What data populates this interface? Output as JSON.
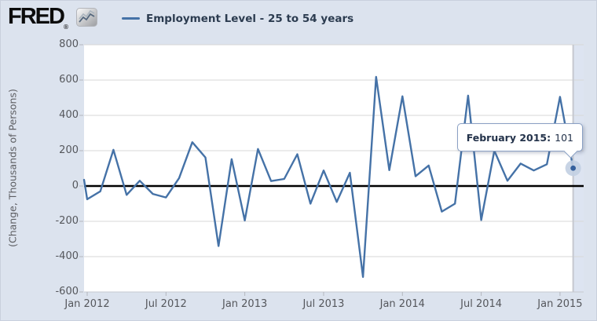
{
  "header": {
    "logo_text": "FRED",
    "logo_registered": "®"
  },
  "legend": {
    "series_label": "Employment Level - 25 to 54 years",
    "swatch_color": "#4572a7"
  },
  "y_axis": {
    "title": "(Change, Thousands of Persons)",
    "tick_labels": [
      "800",
      "600",
      "400",
      "200",
      "0",
      "-200",
      "-400",
      "-600"
    ]
  },
  "x_axis": {
    "tick_labels": [
      "Jan 2012",
      "Jul 2012",
      "Jan 2013",
      "Jul 2013",
      "Jan 2014",
      "Jul 2014",
      "Jan 2015"
    ]
  },
  "tooltip": {
    "label": "February 2015:",
    "value": "101"
  },
  "chart_data": {
    "type": "line",
    "title": "Employment Level - 25 to 54 years",
    "ylabel": "(Change, Thousands of Persons)",
    "ylim": [
      -600,
      800
    ],
    "grid": "horizontal-every-200",
    "x": [
      "2012-01",
      "2012-02",
      "2012-03",
      "2012-04",
      "2012-05",
      "2012-06",
      "2012-07",
      "2012-08",
      "2012-09",
      "2012-10",
      "2012-11",
      "2012-12",
      "2013-01",
      "2013-02",
      "2013-03",
      "2013-04",
      "2013-05",
      "2013-06",
      "2013-07",
      "2013-08",
      "2013-09",
      "2013-10",
      "2013-11",
      "2013-12",
      "2014-01",
      "2014-02",
      "2014-03",
      "2014-04",
      "2014-05",
      "2014-06",
      "2014-07",
      "2014-08",
      "2014-09",
      "2014-10",
      "2014-11",
      "2014-12",
      "2015-01",
      "2015-02"
    ],
    "values": [
      -75,
      -30,
      205,
      -50,
      30,
      -45,
      -65,
      45,
      248,
      162,
      -340,
      152,
      -195,
      210,
      28,
      40,
      180,
      -100,
      88,
      -90,
      75,
      -515,
      618,
      90,
      508,
      55,
      116,
      -145,
      -100,
      512,
      -193,
      200,
      30,
      127,
      88,
      123,
      505,
      101
    ],
    "left_edge_entry_value": 35,
    "highlighted_point": {
      "x": "2015-02",
      "value": 101,
      "tooltip_text": "February 2015: 101"
    }
  },
  "colors": {
    "page_background": "#dce3ee",
    "plot_background": "#ffffff",
    "series_line": "#4572a7",
    "zero_line": "#000000",
    "gridline": "#d7d7d7",
    "axis_line": "#c6c9d0",
    "tick_mark": "#b4b7be",
    "axis_text": "#55575c",
    "crosshair": "#c5c8cf",
    "right_band": "#dde4f1",
    "tooltip_border": "#8aa0c4",
    "marker_halo": "#c2cfe2",
    "marker_dot": "#35609c"
  }
}
